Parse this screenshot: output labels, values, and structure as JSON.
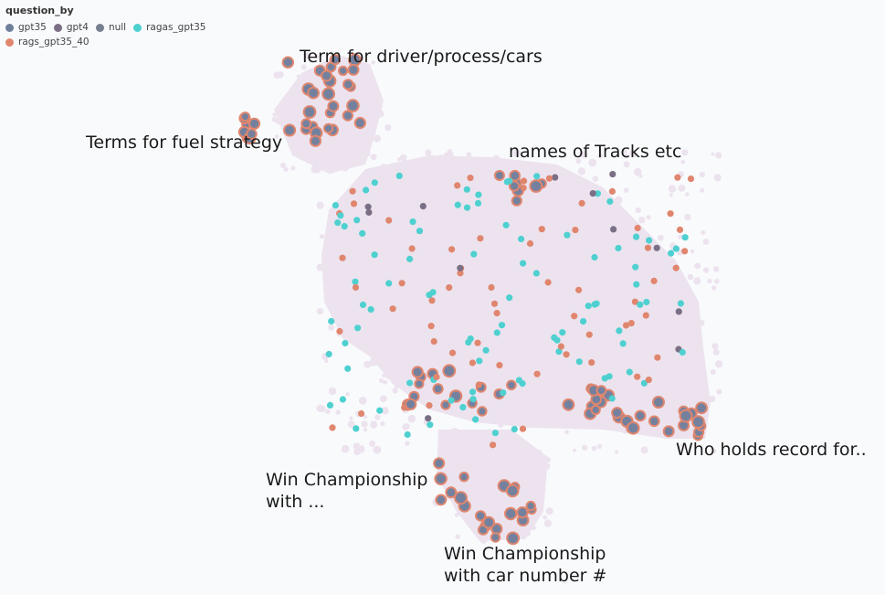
{
  "legend": {
    "title": "question_by",
    "items": [
      {
        "label": "gpt35",
        "color": "#6f7e9a"
      },
      {
        "label": "gpt4",
        "color": "#7a6f85"
      },
      {
        "label": "null",
        "color": "#777f90"
      },
      {
        "label": "ragas_gpt35",
        "color": "#4fd0d0"
      },
      {
        "label": "rags_gpt35_40",
        "color": "#e0866e"
      }
    ]
  },
  "colors": {
    "cloud": "#ece3ef",
    "ring": "#e0866e",
    "core": "#74819e",
    "cyan": "#4fd0d0",
    "orange": "#e0866e",
    "dark": "#7a6f85"
  },
  "chart_data": {
    "type": "scatter",
    "title": "",
    "xlabel": "",
    "ylabel": "",
    "legend_position": "top-left",
    "annotations": [
      {
        "lines": [
          "Term for driver/process/cars"
        ]
      },
      {
        "lines": [
          "Terms for fuel strategy"
        ]
      },
      {
        "lines": [
          "names of Tracks etc"
        ]
      },
      {
        "lines": [
          "Who holds record for.."
        ]
      },
      {
        "lines": [
          "Win Championship",
          "with ..."
        ]
      },
      {
        "lines": [
          "Win Championship",
          "with car number #"
        ]
      }
    ]
  }
}
